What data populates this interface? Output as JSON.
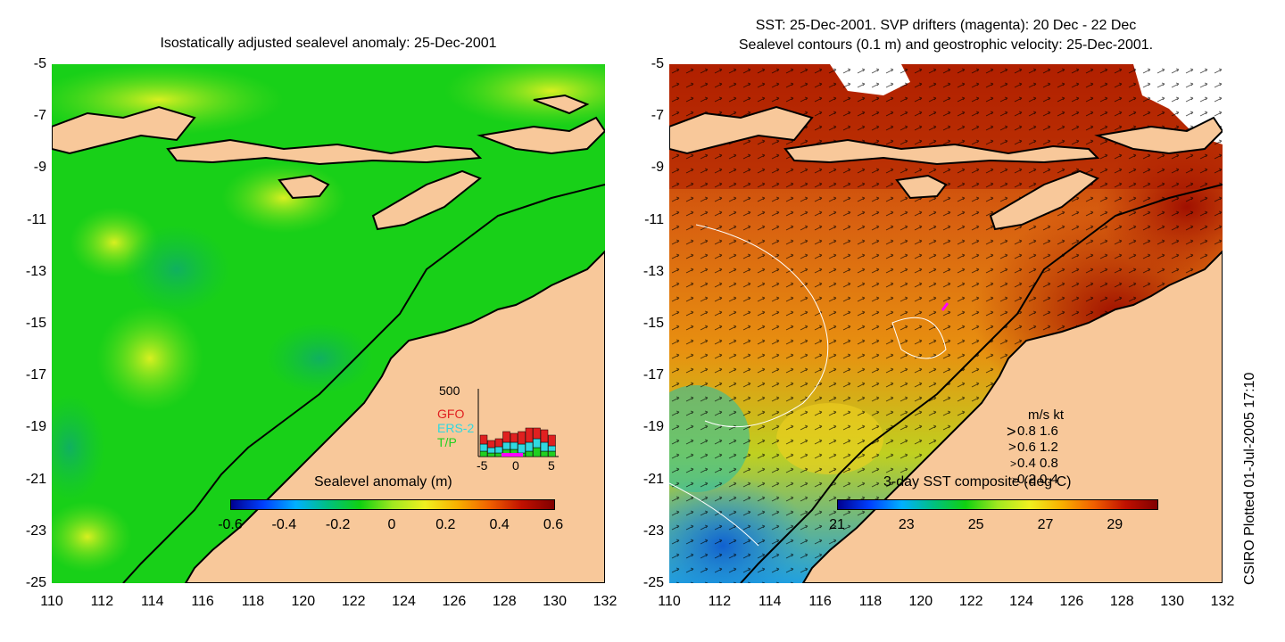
{
  "left_panel": {
    "title": "Isostatically adjusted sealevel anomaly: 25-Dec-2001",
    "colorbar": {
      "title": "Sealevel anomaly (m)",
      "ticks": [
        "-0.6",
        "-0.4",
        "-0.2",
        "0",
        "0.2",
        "0.4",
        "0.6"
      ]
    },
    "inset": {
      "y_max_label": "500",
      "x_ticks": [
        "-5",
        "0",
        "5"
      ],
      "legend": [
        {
          "label": "GFO",
          "color": "#e02020"
        },
        {
          "label": "ERS-2",
          "color": "#30d8e0"
        },
        {
          "label": "T/P",
          "color": "#20d020"
        }
      ]
    }
  },
  "right_panel": {
    "title_line1": "SST: 25-Dec-2001. SVP drifters (magenta): 20 Dec - 22 Dec",
    "title_line2": "Sealevel contours (0.1 m) and geostrophic velocity: 25-Dec-2001.",
    "colorbar": {
      "title": "3-day SST composite (deg C)",
      "ticks": [
        "21",
        "23",
        "25",
        "27",
        "29"
      ]
    },
    "velocity_legend": {
      "header": "m/s  kt",
      "rows": [
        "0.8  1.6",
        "0.6  1.2",
        "0.4  0.8",
        "0.2  0.4"
      ]
    }
  },
  "axes": {
    "y_ticks": [
      "-5",
      "-7",
      "-9",
      "-11",
      "-13",
      "-15",
      "-17",
      "-19",
      "-21",
      "-23",
      "-25"
    ],
    "x_ticks": [
      "110",
      "112",
      "114",
      "116",
      "118",
      "120",
      "122",
      "124",
      "126",
      "128",
      "130",
      "132"
    ]
  },
  "credit": "CSIRO Plotted 01-Jul-2005 17:10",
  "colors": {
    "land": "#f8c89a",
    "sea_green": "#10d010",
    "sst_warm": "#b02000",
    "sst_orange": "#e07010",
    "sst_cool": "#20a0e0"
  }
}
